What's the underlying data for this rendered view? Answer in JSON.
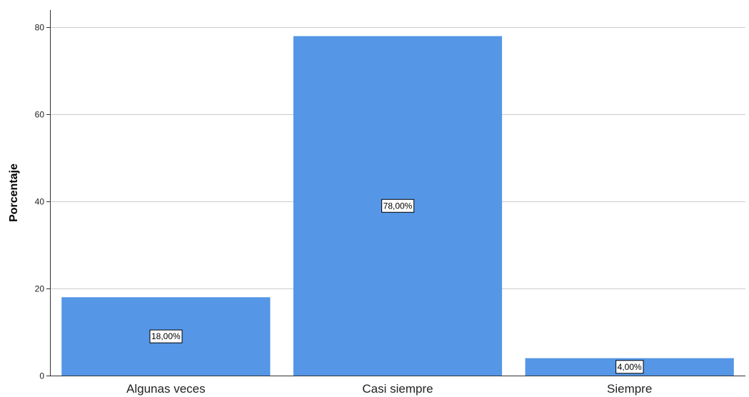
{
  "chart_data": {
    "type": "bar",
    "categories": [
      "Algunas veces",
      "Casi siempre",
      "Siempre"
    ],
    "values": [
      18,
      78,
      4
    ],
    "data_labels": [
      "18,00%",
      "78,00%",
      "4,00%"
    ],
    "ylabel": "Porcentaje",
    "xlabel": "",
    "ylim": [
      0,
      84
    ],
    "yticks": [
      0,
      20,
      40,
      60,
      80
    ],
    "ytick_labels": [
      "0",
      "20",
      "40",
      "60",
      "80"
    ],
    "grid": true,
    "colors": {
      "bar": "#5596e6",
      "grid": "#cccccc",
      "axis": "#333333"
    }
  }
}
